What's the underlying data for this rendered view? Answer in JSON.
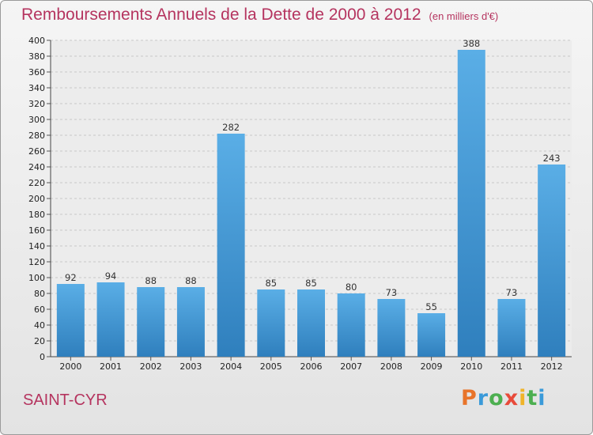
{
  "chart_data": {
    "type": "bar",
    "title": "Remboursements Annuels de la Dette de 2000 à 2012",
    "subtitle": "(en milliers d'€)",
    "categories": [
      "2000",
      "2001",
      "2002",
      "2003",
      "2004",
      "2005",
      "2006",
      "2007",
      "2008",
      "2009",
      "2010",
      "2011",
      "2012"
    ],
    "values": [
      92,
      94,
      88,
      88,
      282,
      85,
      85,
      80,
      73,
      55,
      388,
      73,
      243
    ],
    "ylim": [
      0,
      400
    ],
    "ytick_step": 20,
    "grid": true,
    "bar_color": "#4a9edb"
  },
  "commune": "SAINT-CYR",
  "logo": {
    "letters": [
      "P",
      "r",
      "o",
      "x",
      "i",
      "t",
      "i"
    ],
    "colors": [
      "#e8742a",
      "#3a9ad9",
      "#4caf50",
      "#e84a3a",
      "#f0b429",
      "#4caf50",
      "#3a9ad9"
    ]
  }
}
